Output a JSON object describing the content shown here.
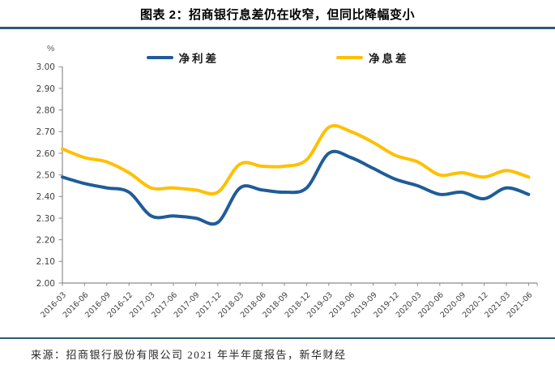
{
  "header": {
    "title": "图表 2：招商银行息差仍在收窄，但同比降幅变小"
  },
  "chart_data": {
    "type": "line",
    "title": "图表 2：招商银行息差仍在收窄，但同比降幅变小",
    "unit_label": "%",
    "categories": [
      "2016-03",
      "2016-06",
      "2016-09",
      "2016-12",
      "2017-03",
      "2017-06",
      "2017-09",
      "2017-12",
      "2018-03",
      "2018-06",
      "2018-09",
      "2018-12",
      "2019-03",
      "2019-06",
      "2019-09",
      "2019-12",
      "2020-03",
      "2020-06",
      "2020-09",
      "2020-12",
      "2021-03",
      "2021-06"
    ],
    "series": [
      {
        "name": "净利差",
        "slug": "net-interest-spread",
        "color": "#1F5C99",
        "values": [
          2.49,
          2.46,
          2.44,
          2.42,
          2.31,
          2.31,
          2.3,
          2.28,
          2.44,
          2.43,
          2.42,
          2.44,
          2.6,
          2.58,
          2.53,
          2.48,
          2.45,
          2.41,
          2.42,
          2.39,
          2.44,
          2.41
        ]
      },
      {
        "name": "净息差",
        "slug": "net-interest-margin",
        "color": "#FFC000",
        "values": [
          2.62,
          2.58,
          2.56,
          2.51,
          2.44,
          2.44,
          2.43,
          2.42,
          2.55,
          2.54,
          2.54,
          2.57,
          2.72,
          2.7,
          2.65,
          2.59,
          2.56,
          2.5,
          2.51,
          2.49,
          2.52,
          2.49
        ]
      }
    ],
    "ylim": [
      2.0,
      3.0
    ],
    "ytick_step": 0.1,
    "ytick_labels": [
      "2.00",
      "2.10",
      "2.20",
      "2.30",
      "2.40",
      "2.50",
      "2.60",
      "2.70",
      "2.80",
      "2.90",
      "3.00"
    ],
    "legend_position": "top",
    "grid": false,
    "colors": {
      "axis": "#8C8C8C",
      "tick_label": "#404040",
      "divider": "#2B5C72"
    }
  },
  "footer": {
    "source": "来源：招商银行股份有限公司 2021 年半年度报告，新华财经"
  }
}
